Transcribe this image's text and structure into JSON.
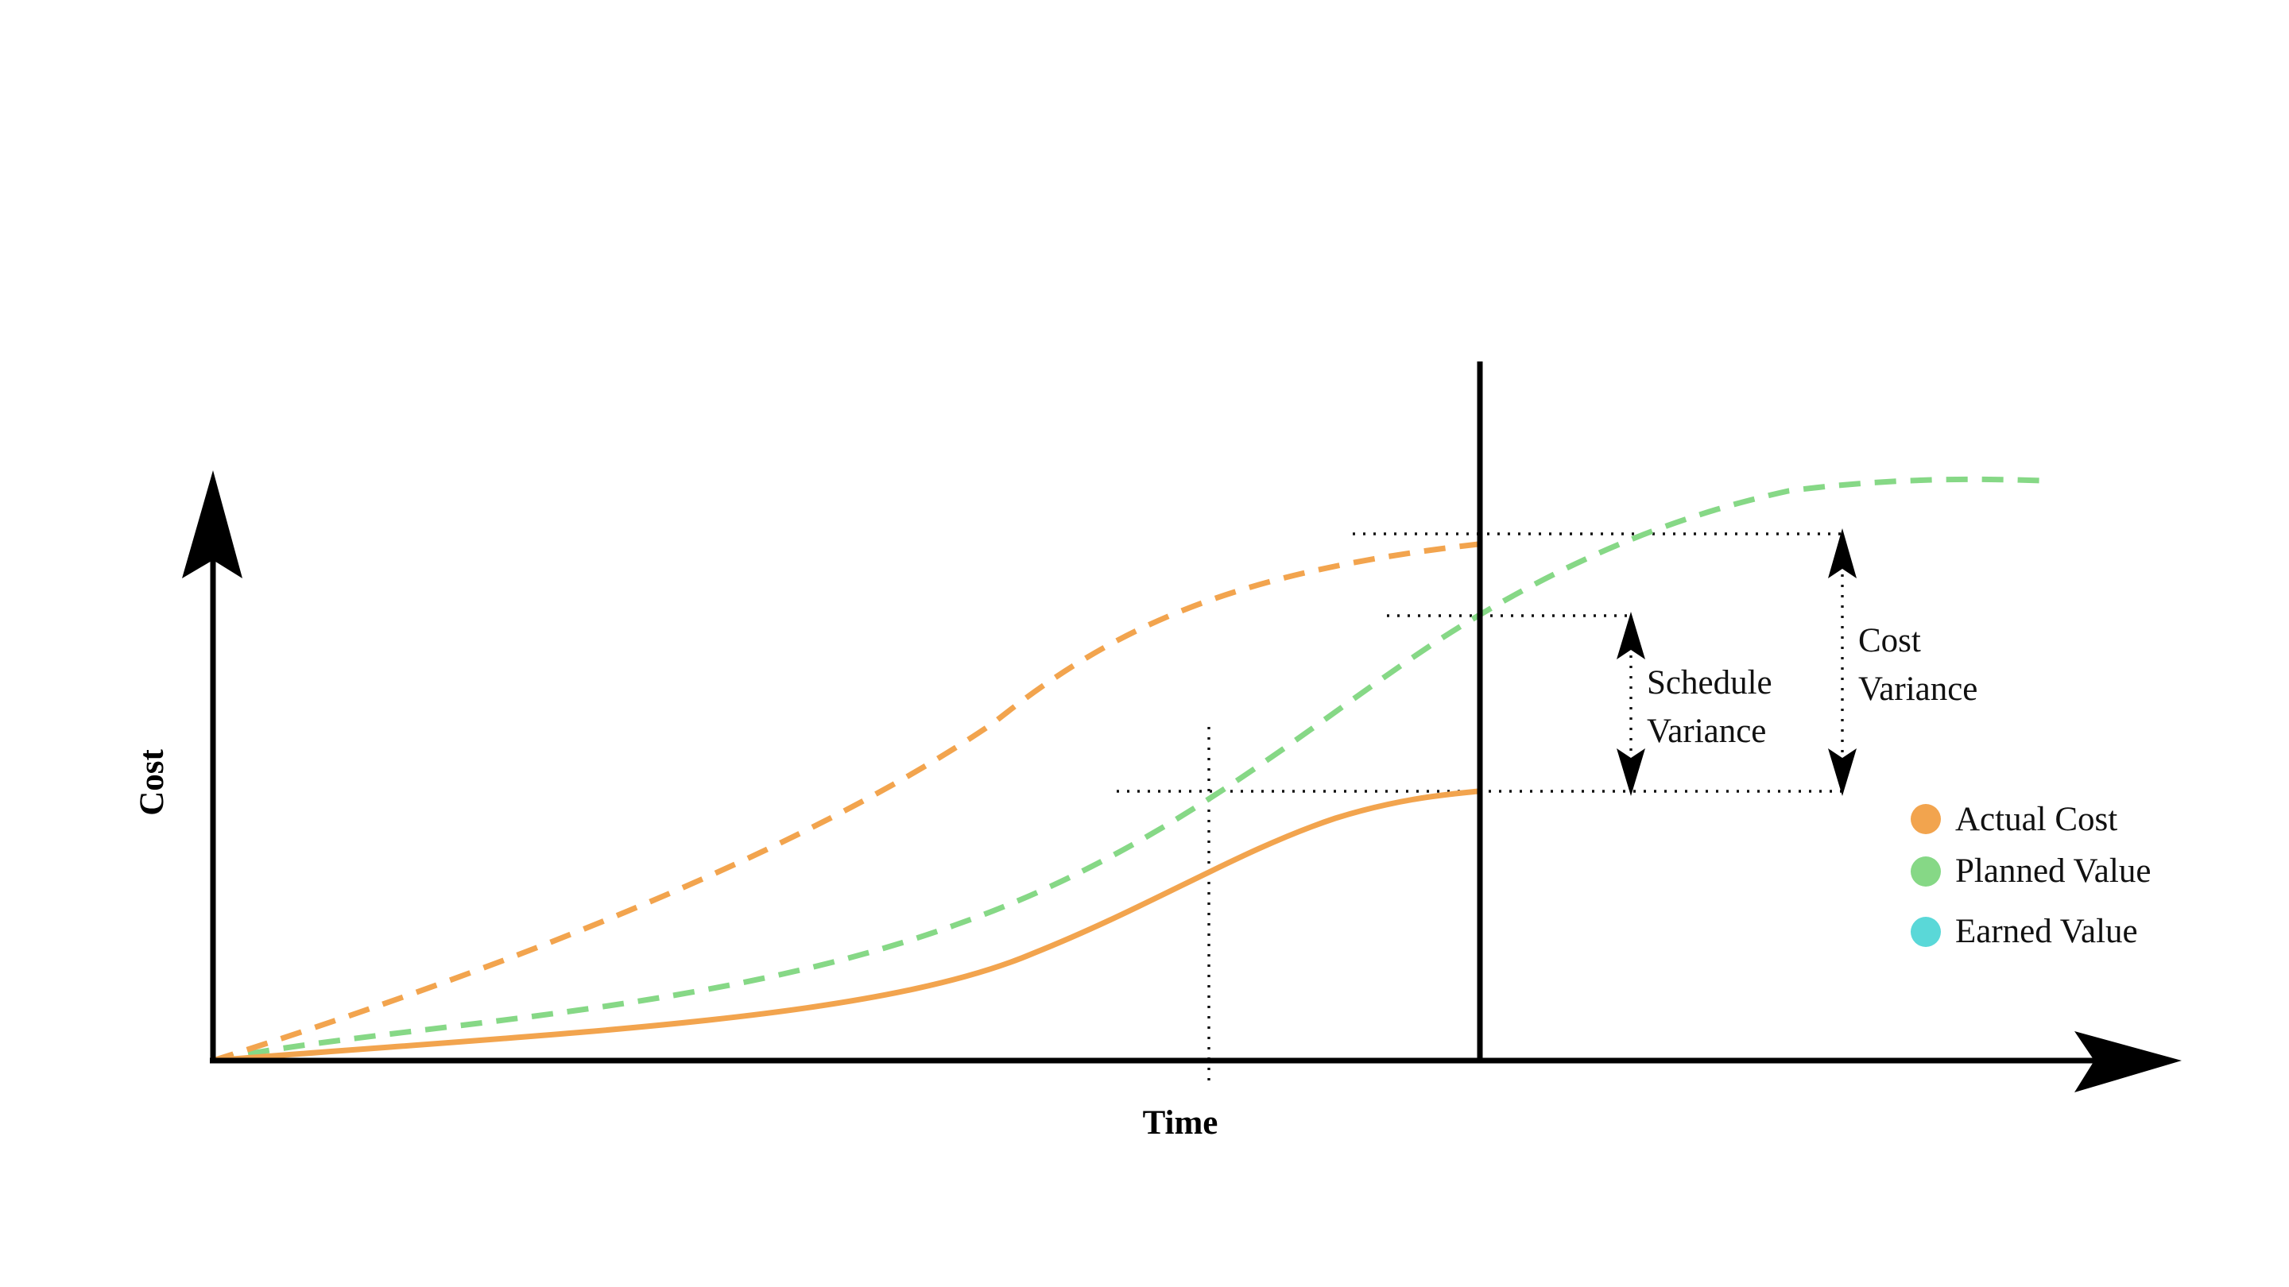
{
  "axes": {
    "x_label": "Time",
    "y_label": "Cost"
  },
  "annotations": {
    "schedule_variance": [
      "Schedule",
      "Variance"
    ],
    "cost_variance": [
      "Cost",
      "Variance"
    ]
  },
  "legend": [
    {
      "label": "Actual Cost",
      "color": "#f2a44e"
    },
    {
      "label": "Planned Value",
      "color": "#86d886"
    },
    {
      "label": "Earned Value",
      "color": "#5ad8d8"
    }
  ],
  "colors": {
    "actual_cost": "#f2a44e",
    "planned_value": "#86d886",
    "earned_value": "#5ad8d8",
    "axis": "#000000"
  }
}
